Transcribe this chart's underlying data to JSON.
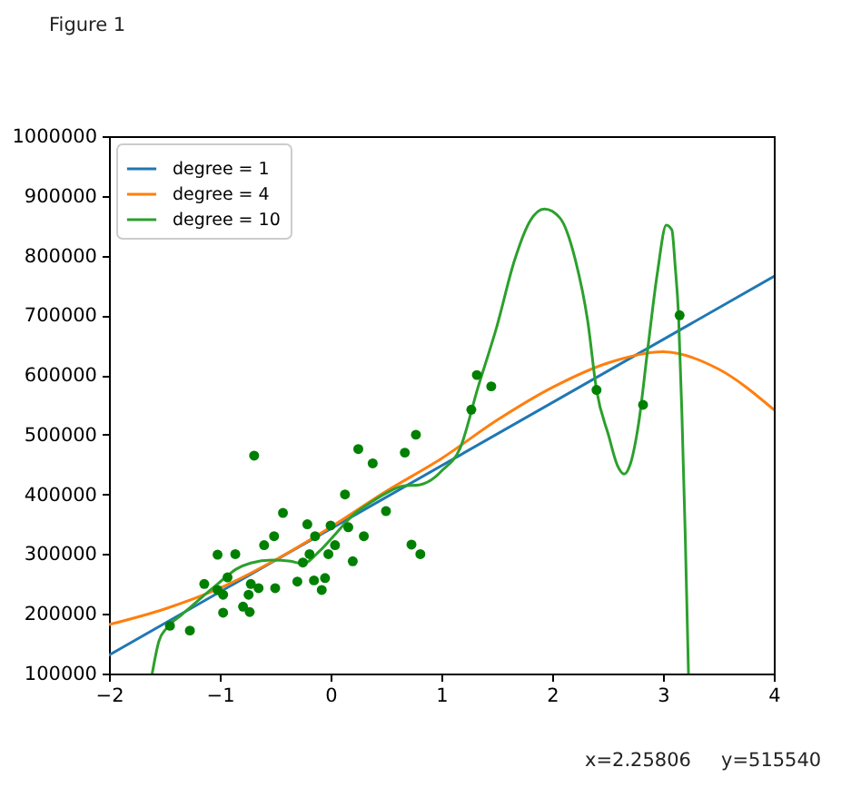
{
  "chart_data": {
    "type": "line",
    "annotations": [
      "Figure 1",
      "x=2.25806",
      "y=515540"
    ],
    "xlim": [
      -2,
      4
    ],
    "ylim": [
      100000,
      1000000
    ],
    "xticks": [
      {
        "value": -2,
        "label": "−2"
      },
      {
        "value": -1,
        "label": "−1"
      },
      0,
      1,
      2,
      3,
      4
    ],
    "yticks": [
      100000,
      200000,
      300000,
      400000,
      500000,
      600000,
      700000,
      800000,
      900000,
      1000000
    ],
    "legend": "top left",
    "series": [
      {
        "name": "degree = 1",
        "color": "#1f77b4",
        "x": [
          -2,
          4
        ],
        "values": [
          131000,
          765000
        ]
      },
      {
        "name": "degree = 4",
        "color": "#ff7f0e",
        "x": [
          -2,
          -1.5,
          -1,
          -0.5,
          0,
          0.5,
          1,
          1.5,
          2,
          2.5,
          3,
          3.5,
          4
        ],
        "values": [
          182000,
          208000,
          243000,
          290000,
          345000,
          405000,
          460000,
          524000,
          579000,
          620000,
          639000,
          610000,
          542000
        ]
      },
      {
        "name": "degree = 10",
        "color": "#2ca02c",
        "x": [
          -1.61,
          -1.55,
          -1.48,
          -1.34,
          -1.18,
          -1.02,
          -0.85,
          -0.72,
          -0.53,
          -0.36,
          -0.25,
          -0.1,
          0.05,
          0.2,
          0.35,
          0.5,
          0.65,
          0.8,
          0.95,
          1.0,
          1.17,
          1.33,
          1.5,
          1.66,
          1.8,
          1.93,
          2.07,
          2.21,
          2.32,
          2.4,
          2.51,
          2.59,
          2.65,
          2.7,
          2.78,
          2.86,
          2.95,
          3.03,
          3.08,
          3.11,
          3.14,
          3.17,
          3.2,
          3.23
        ],
        "values": [
          100000,
          154000,
          176000,
          199000,
          225000,
          250000,
          275000,
          285000,
          290000,
          288000,
          284000,
          305000,
          335000,
          365000,
          385000,
          402000,
          414000,
          416000,
          430000,
          439000,
          478000,
          579000,
          681000,
          792000,
          858000,
          878000,
          863000,
          792000,
          691000,
          575000,
          498000,
          448000,
          434000,
          448000,
          519000,
          640000,
          772000,
          851000,
          843000,
          782000,
          701000,
          539000,
          336000,
          100000
        ]
      },
      {
        "type": "scatter",
        "color": "#008000",
        "marker": "circle",
        "x": [
          -1.45,
          -1.27,
          -1.14,
          -1.02,
          -1.02,
          -0.97,
          -0.97,
          -0.93,
          -0.86,
          -0.79,
          -0.74,
          -0.73,
          -0.72,
          -0.69,
          -0.65,
          -0.6,
          -0.51,
          -0.5,
          -0.43,
          -0.3,
          -0.25,
          -0.21,
          -0.19,
          -0.15,
          -0.14,
          -0.08,
          -0.05,
          -0.02,
          0.0,
          0.04,
          0.13,
          0.16,
          0.2,
          0.25,
          0.3,
          0.38,
          0.5,
          0.67,
          0.73,
          0.77,
          0.81,
          1.27,
          1.32,
          1.45,
          2.4,
          2.82,
          3.15
        ],
        "values": [
          180000,
          172000,
          250000,
          299000,
          240000,
          232000,
          202000,
          261000,
          300000,
          212000,
          232000,
          203000,
          250000,
          465000,
          243000,
          315000,
          330000,
          243000,
          369000,
          254000,
          286000,
          350000,
          300000,
          256000,
          330000,
          240000,
          260000,
          300000,
          348000,
          315000,
          400000,
          345000,
          288000,
          476000,
          330000,
          452000,
          372000,
          470000,
          316000,
          500000,
          300000,
          542000,
          600000,
          581000,
          575000,
          550000,
          700000
        ]
      }
    ]
  }
}
